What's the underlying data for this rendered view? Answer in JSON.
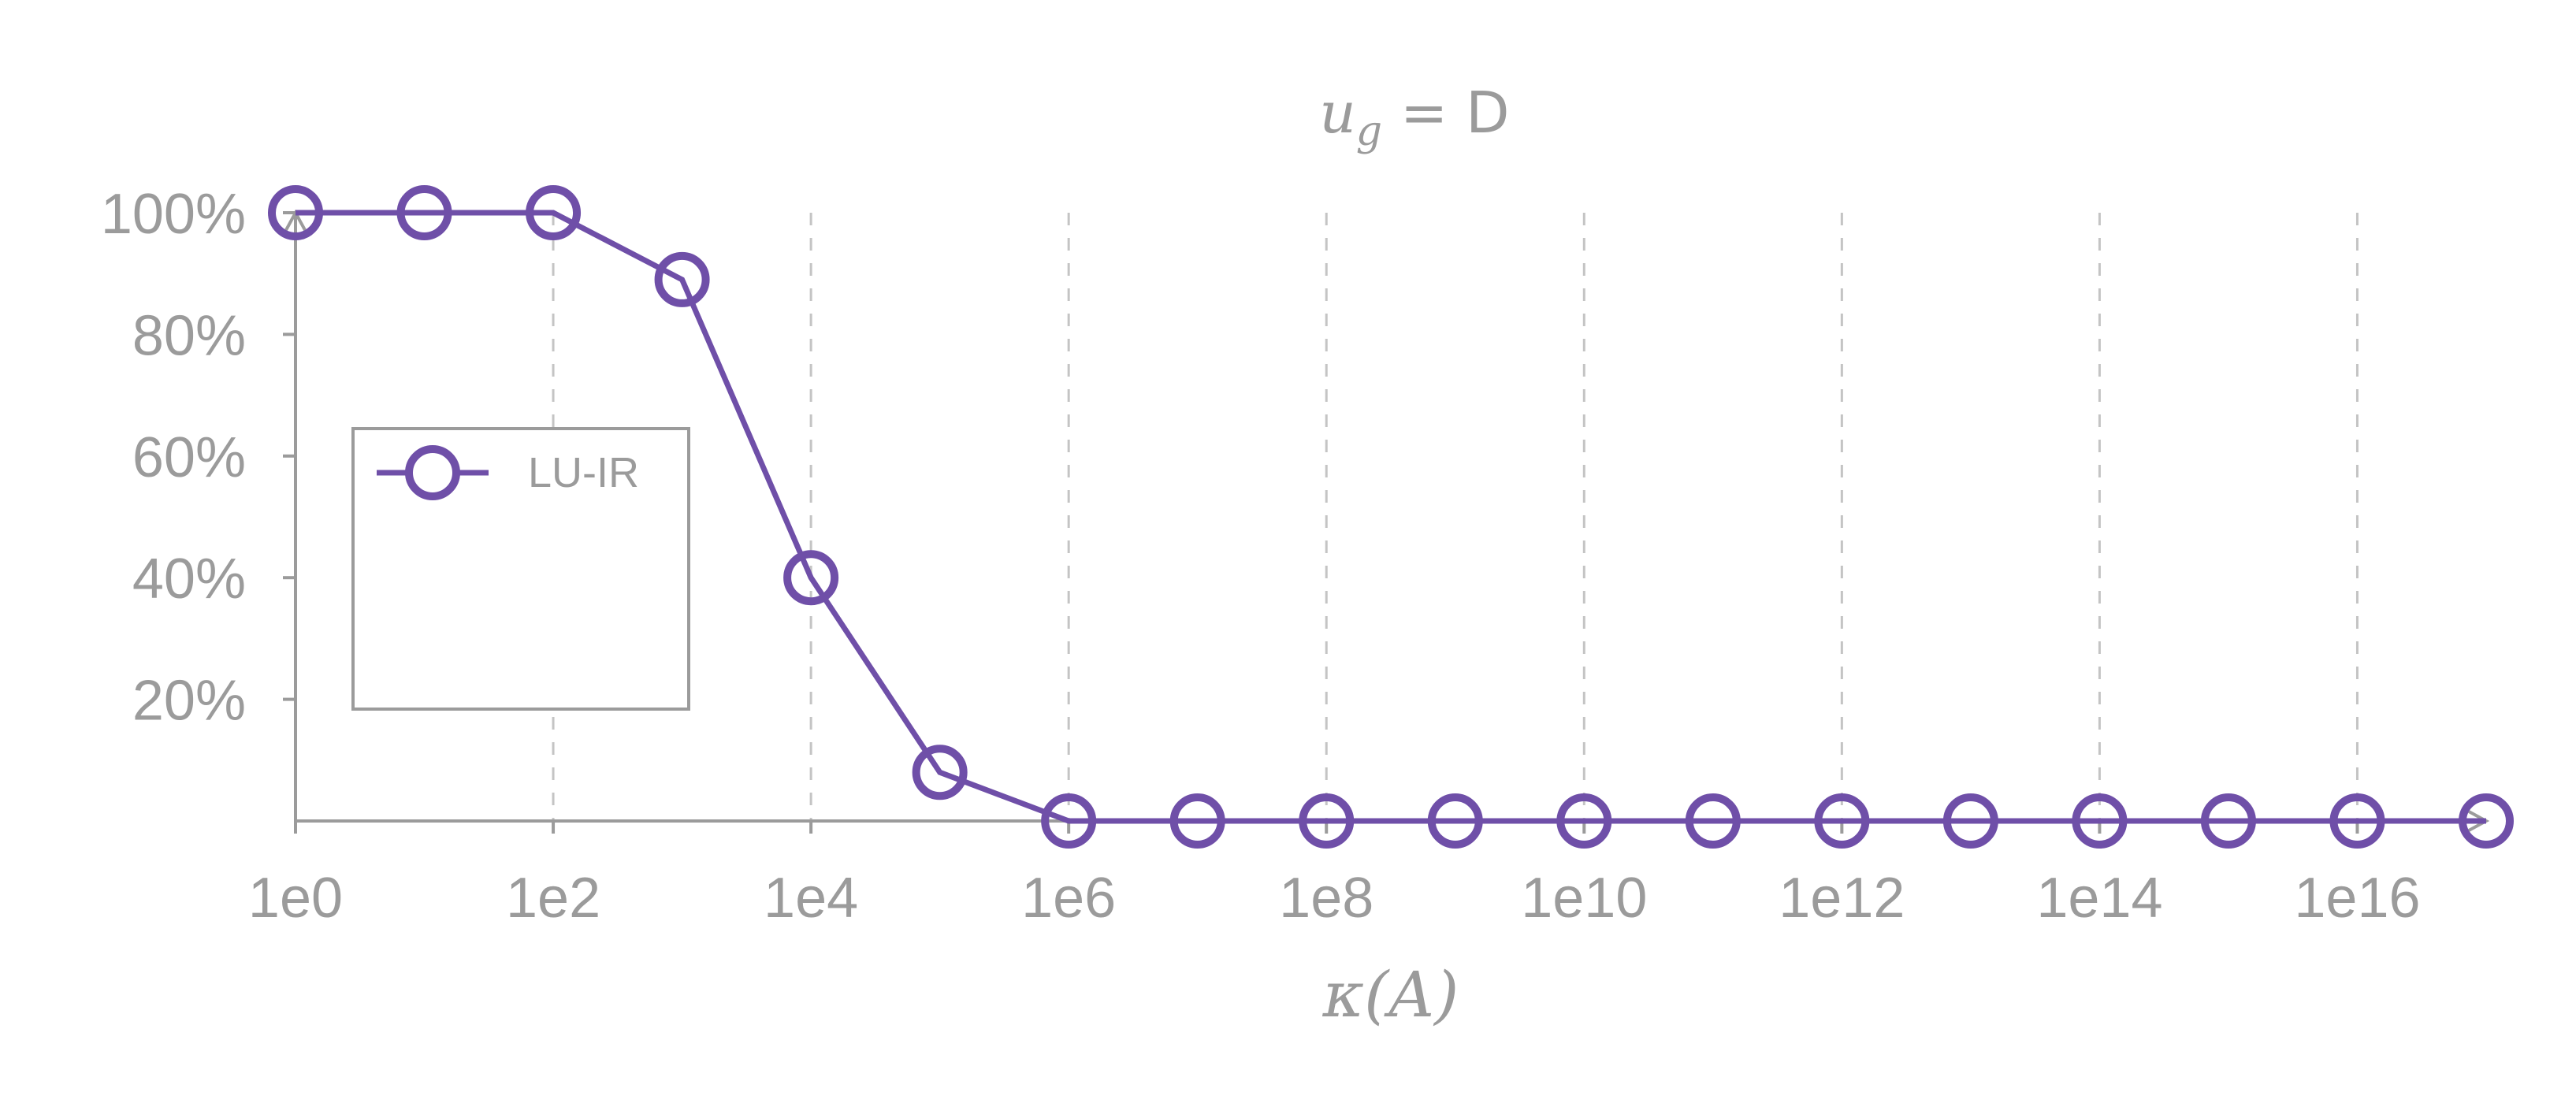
{
  "chart_data": {
    "type": "line",
    "title": "u_g = D",
    "xlabel": "κ(A)",
    "ylabel": "",
    "x_scale": "log10",
    "xlim": [
      1,
      1e+17
    ],
    "ylim": [
      0,
      100
    ],
    "x_ticks": [
      {
        "value": 1,
        "label": "1e0"
      },
      {
        "value": 100,
        "label": "1e2"
      },
      {
        "value": 10000,
        "label": "1e4"
      },
      {
        "value": 1000000,
        "label": "1e6"
      },
      {
        "value": 100000000,
        "label": "1e8"
      },
      {
        "value": 10000000000,
        "label": "1e10"
      },
      {
        "value": 1000000000000,
        "label": "1e12"
      },
      {
        "value": 100000000000000,
        "label": "1e14"
      },
      {
        "value": 10000000000000000,
        "label": "1e16"
      }
    ],
    "y_ticks": [
      {
        "value": 20,
        "label": "20%"
      },
      {
        "value": 40,
        "label": "40%"
      },
      {
        "value": 60,
        "label": "60%"
      },
      {
        "value": 80,
        "label": "80%"
      },
      {
        "value": 100,
        "label": "100%"
      }
    ],
    "grid": "vertical dashed",
    "legend_position": "left",
    "series": [
      {
        "name": "LU-IR",
        "color": "#6f4fa8",
        "marker": "open-circle",
        "x": [
          1,
          10,
          100,
          1000,
          10000,
          100000,
          1000000,
          10000000,
          100000000,
          1000000000,
          10000000000,
          100000000000,
          1000000000000,
          10000000000000,
          100000000000000,
          1000000000000000,
          10000000000000000,
          100000000000000000
        ],
        "y": [
          100,
          100,
          100,
          89,
          40,
          8,
          0,
          0,
          0,
          0,
          0,
          0,
          0,
          0,
          0,
          0,
          0,
          0
        ]
      }
    ]
  }
}
